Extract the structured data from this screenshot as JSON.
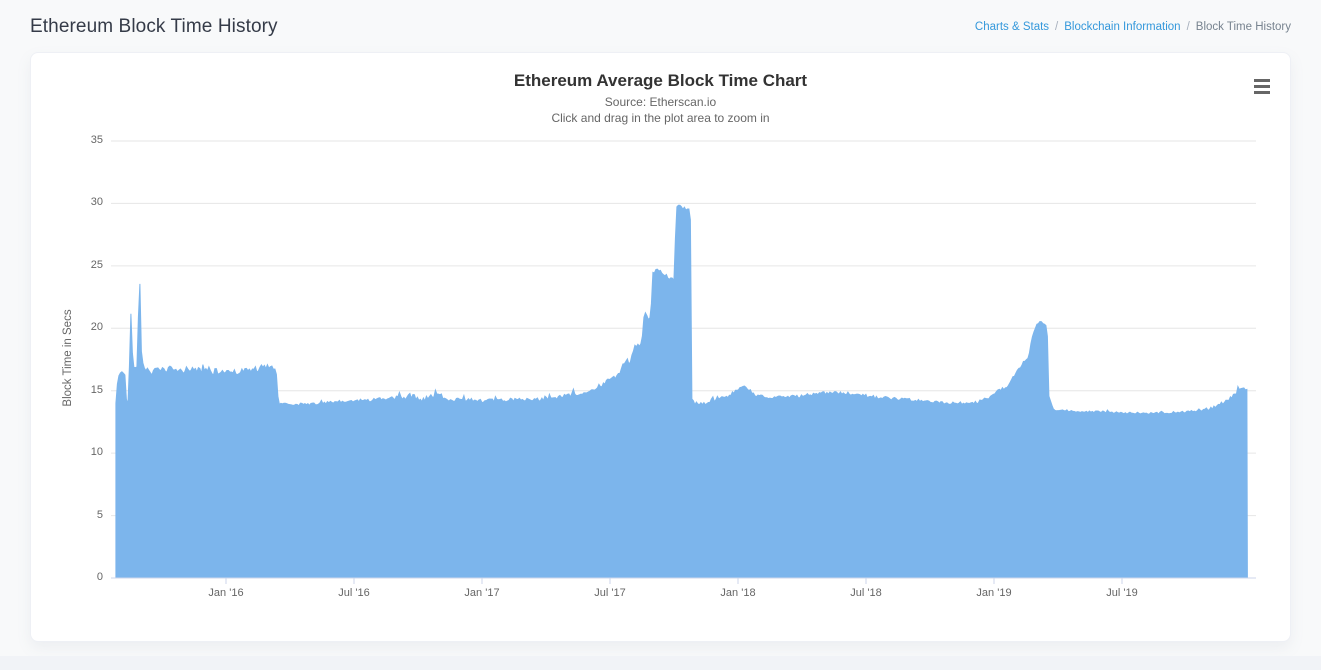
{
  "page": {
    "title": "Ethereum Block Time History",
    "breadcrumb": {
      "separator": "/",
      "items": [
        {
          "label": "Charts & Stats",
          "type": "link"
        },
        {
          "label": "Blockchain Information",
          "type": "link"
        },
        {
          "label": "Block Time History",
          "type": "current"
        }
      ]
    }
  },
  "chart_data": {
    "type": "area",
    "title": "Ethereum Average Block Time Chart",
    "subtitle": "Source: Etherscan.io",
    "hint": "Click and drag in the plot area to zoom in",
    "ylabel": "Block Time in Secs",
    "xlabel": "",
    "ylim": [
      0,
      35
    ],
    "yticks": [
      0,
      5,
      10,
      15,
      20,
      25,
      30,
      35
    ],
    "xticks": [
      {
        "label": "Jan '16",
        "year": 2016.0
      },
      {
        "label": "Jul '16",
        "year": 2016.5
      },
      {
        "label": "Jan '17",
        "year": 2017.0
      },
      {
        "label": "Jul '17",
        "year": 2017.5
      },
      {
        "label": "Jan '18",
        "year": 2018.0
      },
      {
        "label": "Jul '18",
        "year": 2018.5
      },
      {
        "label": "Jan '19",
        "year": 2019.0
      },
      {
        "label": "Jul '19",
        "year": 2019.5
      }
    ],
    "x_range": [
      2015.57,
      2019.99
    ],
    "grid": true,
    "legend": "none",
    "colors": {
      "series": "#7cb5ec",
      "grid": "#e6e6e6",
      "axis_line": "#ccd6eb",
      "tick_text": "#666666",
      "title_text": "#333333",
      "subtitle_text": "#666666"
    },
    "menu_icon": "hamburger-icon",
    "points_format": [
      "year",
      "block_time_secs",
      "daily_jitter_amp"
    ],
    "points": [
      [
        2015.572,
        13.9,
        0.8
      ],
      [
        2015.578,
        16.0,
        0.7
      ],
      [
        2015.585,
        16.8,
        0.6
      ],
      [
        2015.592,
        16.2,
        0.6
      ],
      [
        2015.6,
        16.6,
        0.6
      ],
      [
        2015.608,
        15.8,
        0.7
      ],
      [
        2015.615,
        12.8,
        0.4
      ],
      [
        2015.622,
        16.6,
        0.5
      ],
      [
        2015.628,
        21.4,
        0.3
      ],
      [
        2015.634,
        17.8,
        0.5
      ],
      [
        2015.645,
        16.6,
        0.5
      ],
      [
        2015.655,
        17.4,
        0.5
      ],
      [
        2015.662,
        25.5,
        0.3
      ],
      [
        2015.668,
        18.4,
        0.5
      ],
      [
        2015.676,
        17.1,
        0.5
      ],
      [
        2015.69,
        16.7,
        0.5
      ],
      [
        2015.71,
        16.5,
        0.5
      ],
      [
        2015.74,
        16.6,
        0.5
      ],
      [
        2015.78,
        16.7,
        0.5
      ],
      [
        2015.82,
        16.5,
        0.5
      ],
      [
        2015.86,
        16.8,
        0.5
      ],
      [
        2015.9,
        16.6,
        0.5
      ],
      [
        2015.94,
        16.5,
        0.5
      ],
      [
        2015.98,
        16.5,
        0.5
      ],
      [
        2016.02,
        16.6,
        0.5
      ],
      [
        2016.06,
        16.5,
        0.5
      ],
      [
        2016.1,
        16.7,
        0.5
      ],
      [
        2016.14,
        16.8,
        0.5
      ],
      [
        2016.17,
        16.9,
        0.5
      ],
      [
        2016.195,
        16.6,
        0.5
      ],
      [
        2016.205,
        14.0,
        0.2
      ],
      [
        2016.25,
        13.9,
        0.2
      ],
      [
        2016.31,
        13.9,
        0.2
      ],
      [
        2016.38,
        14.0,
        0.2
      ],
      [
        2016.45,
        14.1,
        0.25
      ],
      [
        2016.52,
        14.2,
        0.25
      ],
      [
        2016.6,
        14.3,
        0.3
      ],
      [
        2016.68,
        14.4,
        0.35
      ],
      [
        2016.73,
        14.6,
        0.5
      ],
      [
        2016.76,
        14.3,
        0.4
      ],
      [
        2016.79,
        14.5,
        0.5
      ],
      [
        2016.82,
        14.8,
        0.5
      ],
      [
        2016.85,
        14.4,
        0.4
      ],
      [
        2016.89,
        14.3,
        0.3
      ],
      [
        2016.94,
        14.3,
        0.25
      ],
      [
        2017.0,
        14.2,
        0.25
      ],
      [
        2017.07,
        14.2,
        0.25
      ],
      [
        2017.14,
        14.3,
        0.25
      ],
      [
        2017.21,
        14.3,
        0.25
      ],
      [
        2017.28,
        14.4,
        0.3
      ],
      [
        2017.34,
        14.6,
        0.3
      ],
      [
        2017.4,
        14.8,
        0.3
      ],
      [
        2017.44,
        15.0,
        0.3
      ],
      [
        2017.47,
        15.5,
        0.3
      ],
      [
        2017.5,
        16.0,
        0.3
      ],
      [
        2017.53,
        16.1,
        0.3
      ],
      [
        2017.555,
        17.2,
        0.3
      ],
      [
        2017.58,
        17.3,
        0.3
      ],
      [
        2017.6,
        18.7,
        0.3
      ],
      [
        2017.615,
        18.5,
        0.3
      ],
      [
        2017.625,
        19.0,
        0.3
      ],
      [
        2017.632,
        20.8,
        0.3
      ],
      [
        2017.64,
        21.2,
        0.3
      ],
      [
        2017.65,
        20.7,
        0.3
      ],
      [
        2017.66,
        20.9,
        0.3
      ],
      [
        2017.667,
        24.4,
        0.35
      ],
      [
        2017.68,
        24.8,
        0.35
      ],
      [
        2017.7,
        24.5,
        0.35
      ],
      [
        2017.72,
        24.2,
        0.3
      ],
      [
        2017.74,
        24.0,
        0.3
      ],
      [
        2017.752,
        23.9,
        0.3
      ],
      [
        2017.758,
        29.6,
        0.3
      ],
      [
        2017.77,
        30.1,
        0.25
      ],
      [
        2017.78,
        29.7,
        0.25
      ],
      [
        2017.795,
        29.6,
        0.25
      ],
      [
        2017.81,
        29.4,
        0.25
      ],
      [
        2017.814,
        29.3,
        0.2
      ],
      [
        2017.817,
        14.4,
        0.15
      ],
      [
        2017.83,
        14.0,
        0.2
      ],
      [
        2017.87,
        14.0,
        0.25
      ],
      [
        2017.9,
        14.2,
        0.3
      ],
      [
        2017.93,
        14.5,
        0.3
      ],
      [
        2017.96,
        14.4,
        0.3
      ],
      [
        2017.99,
        15.0,
        0.3
      ],
      [
        2018.02,
        15.3,
        0.3
      ],
      [
        2018.04,
        15.1,
        0.3
      ],
      [
        2018.065,
        14.6,
        0.25
      ],
      [
        2018.1,
        14.5,
        0.25
      ],
      [
        2018.16,
        14.5,
        0.25
      ],
      [
        2018.22,
        14.5,
        0.25
      ],
      [
        2018.28,
        14.7,
        0.25
      ],
      [
        2018.34,
        14.8,
        0.25
      ],
      [
        2018.4,
        14.8,
        0.25
      ],
      [
        2018.46,
        14.7,
        0.25
      ],
      [
        2018.52,
        14.5,
        0.25
      ],
      [
        2018.58,
        14.4,
        0.25
      ],
      [
        2018.64,
        14.3,
        0.2
      ],
      [
        2018.7,
        14.2,
        0.2
      ],
      [
        2018.76,
        14.1,
        0.2
      ],
      [
        2018.82,
        14.0,
        0.2
      ],
      [
        2018.88,
        14.0,
        0.2
      ],
      [
        2018.94,
        14.1,
        0.25
      ],
      [
        2018.98,
        14.4,
        0.3
      ],
      [
        2019.005,
        14.9,
        0.3
      ],
      [
        2019.02,
        15.2,
        0.3
      ],
      [
        2019.04,
        15.1,
        0.3
      ],
      [
        2019.06,
        15.6,
        0.3
      ],
      [
        2019.08,
        16.2,
        0.3
      ],
      [
        2019.095,
        16.6,
        0.3
      ],
      [
        2019.11,
        17.2,
        0.3
      ],
      [
        2019.125,
        17.4,
        0.3
      ],
      [
        2019.14,
        17.9,
        0.3
      ],
      [
        2019.155,
        19.8,
        0.3
      ],
      [
        2019.17,
        20.3,
        0.25
      ],
      [
        2019.185,
        20.5,
        0.25
      ],
      [
        2019.2,
        20.2,
        0.25
      ],
      [
        2019.208,
        20.4,
        0.25
      ],
      [
        2019.212,
        14.8,
        0.15
      ],
      [
        2019.23,
        13.5,
        0.15
      ],
      [
        2019.28,
        13.4,
        0.15
      ],
      [
        2019.35,
        13.3,
        0.15
      ],
      [
        2019.42,
        13.3,
        0.15
      ],
      [
        2019.5,
        13.2,
        0.15
      ],
      [
        2019.58,
        13.2,
        0.15
      ],
      [
        2019.66,
        13.2,
        0.15
      ],
      [
        2019.74,
        13.3,
        0.15
      ],
      [
        2019.8,
        13.4,
        0.18
      ],
      [
        2019.85,
        13.6,
        0.2
      ],
      [
        2019.88,
        13.9,
        0.22
      ],
      [
        2019.9,
        14.1,
        0.25
      ],
      [
        2019.925,
        14.4,
        0.25
      ],
      [
        2019.945,
        14.8,
        0.25
      ],
      [
        2019.96,
        15.1,
        0.2
      ],
      [
        2019.975,
        15.2,
        0.2
      ],
      [
        2019.99,
        15.1,
        0.2
      ]
    ]
  }
}
